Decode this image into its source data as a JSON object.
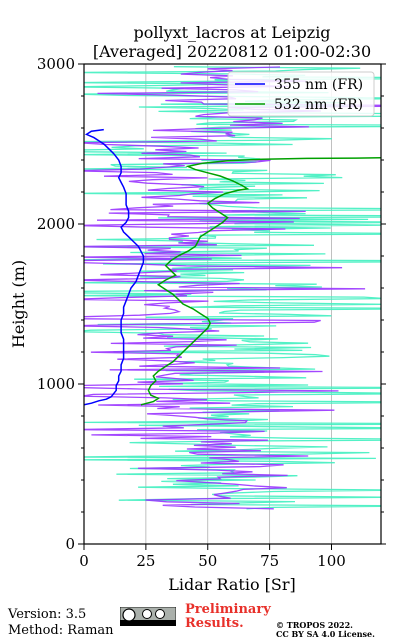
{
  "chart_data": {
    "type": "line",
    "title": "pollyxt_lacros at Leipzig",
    "subtitle": "[Averaged] 20220812 01:00-02:30",
    "xlabel": "Lidar Ratio [Sr]",
    "ylabel": "Height (m)",
    "xlim": [
      0,
      120
    ],
    "ylim": [
      0,
      3000
    ],
    "xticks": [
      "0",
      "25",
      "50",
      "75",
      "100"
    ],
    "yticks": [
      "0",
      "1000",
      "2000",
      "3000"
    ],
    "grid": true,
    "legend_position": "top-right",
    "series": [
      {
        "name": "355 nm (FR)",
        "color": "#0000ff",
        "points": [
          [
            0,
            870
          ],
          [
            3,
            880
          ],
          [
            6,
            895
          ],
          [
            9,
            905
          ],
          [
            11,
            920
          ],
          [
            12,
            940
          ],
          [
            13,
            960
          ],
          [
            13,
            990
          ],
          [
            14,
            1020
          ],
          [
            14,
            1050
          ],
          [
            15,
            1080
          ],
          [
            15,
            1120
          ],
          [
            16,
            1160
          ],
          [
            16,
            1200
          ],
          [
            16,
            1240
          ],
          [
            16,
            1280
          ],
          [
            15,
            1320
          ],
          [
            15,
            1360
          ],
          [
            15,
            1400
          ],
          [
            16,
            1440
          ],
          [
            16,
            1480
          ],
          [
            17,
            1520
          ],
          [
            18,
            1560
          ],
          [
            19,
            1600
          ],
          [
            21,
            1640
          ],
          [
            22,
            1680
          ],
          [
            23,
            1720
          ],
          [
            24,
            1760
          ],
          [
            24,
            1800
          ],
          [
            23,
            1830
          ],
          [
            22,
            1860
          ],
          [
            20,
            1890
          ],
          [
            18,
            1920
          ],
          [
            16,
            1950
          ],
          [
            15,
            1980
          ],
          [
            17,
            2010
          ],
          [
            18,
            2040
          ],
          [
            18,
            2080
          ],
          [
            17,
            2120
          ],
          [
            17,
            2160
          ],
          [
            17,
            2190
          ],
          [
            16,
            2230
          ],
          [
            15,
            2260
          ],
          [
            14,
            2290
          ],
          [
            15,
            2320
          ],
          [
            15,
            2360
          ],
          [
            14,
            2400
          ],
          [
            12,
            2440
          ],
          [
            10,
            2470
          ],
          [
            8,
            2500
          ],
          [
            6,
            2520
          ],
          [
            4,
            2540
          ],
          [
            1,
            2560
          ],
          [
            3,
            2580
          ],
          [
            8,
            2590
          ]
        ]
      },
      {
        "name": "532 nm (FR)",
        "color": "#00a000",
        "points": [
          [
            23,
            870
          ],
          [
            28,
            890
          ],
          [
            30,
            910
          ],
          [
            27,
            930
          ],
          [
            26,
            960
          ],
          [
            27,
            990
          ],
          [
            29,
            1020
          ],
          [
            28,
            1050
          ],
          [
            30,
            1080
          ],
          [
            33,
            1110
          ],
          [
            36,
            1140
          ],
          [
            38,
            1170
          ],
          [
            40,
            1200
          ],
          [
            42,
            1230
          ],
          [
            44,
            1260
          ],
          [
            46,
            1290
          ],
          [
            48,
            1320
          ],
          [
            50,
            1350
          ],
          [
            51,
            1380
          ],
          [
            50,
            1410
          ],
          [
            47,
            1440
          ],
          [
            44,
            1470
          ],
          [
            40,
            1500
          ],
          [
            38,
            1530
          ],
          [
            36,
            1560
          ],
          [
            33,
            1590
          ],
          [
            30,
            1620
          ],
          [
            33,
            1650
          ],
          [
            37,
            1680
          ],
          [
            35,
            1710
          ],
          [
            33,
            1740
          ],
          [
            35,
            1770
          ],
          [
            38,
            1800
          ],
          [
            42,
            1830
          ],
          [
            45,
            1860
          ],
          [
            46,
            1890
          ],
          [
            47,
            1920
          ],
          [
            50,
            1950
          ],
          [
            53,
            1980
          ],
          [
            56,
            2010
          ],
          [
            58,
            2040
          ],
          [
            55,
            2070
          ],
          [
            52,
            2100
          ],
          [
            50,
            2130
          ],
          [
            53,
            2160
          ],
          [
            57,
            2190
          ],
          [
            62,
            2210
          ],
          [
            66,
            2220
          ],
          [
            64,
            2240
          ],
          [
            60,
            2270
          ],
          [
            55,
            2300
          ],
          [
            50,
            2320
          ],
          [
            45,
            2340
          ],
          [
            42,
            2360
          ],
          [
            48,
            2380
          ],
          [
            58,
            2395
          ],
          [
            72,
            2405
          ],
          [
            90,
            2410
          ],
          [
            110,
            2412
          ],
          [
            120,
            2414
          ]
        ]
      }
    ]
  },
  "footer": {
    "version": "Version: 3.5",
    "method": "Method: Raman",
    "preliminary_line1": "Preliminary",
    "preliminary_line2": "Results.",
    "tropos_line1": "© TROPOS 2022.",
    "tropos_line2": "CC BY SA 4.0 License."
  }
}
